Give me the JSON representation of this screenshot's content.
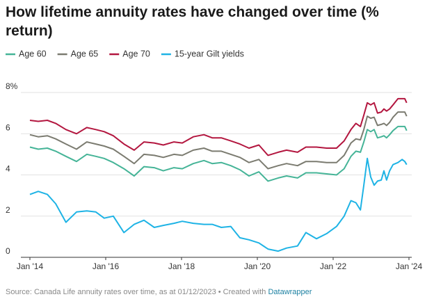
{
  "chart_data": {
    "type": "line",
    "title": "How lifetime annuity rates have changed over time (% return)",
    "source": "Source: Canada Life annuity rates over time, as at 01/12/2023 • Created with ",
    "credit": "Datawrapper",
    "x": [
      2014.0,
      2014.22,
      2014.46,
      2014.68,
      2014.95,
      2015.23,
      2015.5,
      2015.74,
      2015.96,
      2016.2,
      2016.48,
      2016.75,
      2017.01,
      2017.28,
      2017.52,
      2017.8,
      2018.02,
      2018.31,
      2018.59,
      2018.81,
      2019.05,
      2019.3,
      2019.54,
      2019.78,
      2020.04,
      2020.28,
      2020.55,
      2020.77,
      2021.06,
      2021.28,
      2021.56,
      2021.83,
      2022.09,
      2022.29,
      2022.47,
      2022.6,
      2022.72,
      2022.81,
      2022.9,
      2022.99,
      2023.08,
      2023.17,
      2023.27,
      2023.34,
      2023.41,
      2023.49,
      2023.58,
      2023.71,
      2023.82,
      2023.89,
      2023.94
    ],
    "series": [
      {
        "name": "Age 60",
        "color": "#45b497",
        "values": [
          5.35,
          5.25,
          5.3,
          5.15,
          4.9,
          4.65,
          5.0,
          4.9,
          4.8,
          4.6,
          4.3,
          3.95,
          4.4,
          4.35,
          4.2,
          4.35,
          4.3,
          4.55,
          4.7,
          4.55,
          4.6,
          4.45,
          4.25,
          3.95,
          4.15,
          3.7,
          3.85,
          3.95,
          3.85,
          4.1,
          4.1,
          4.05,
          4.0,
          4.3,
          4.9,
          5.15,
          5.1,
          5.6,
          6.2,
          6.1,
          6.2,
          5.8,
          5.85,
          5.9,
          5.8,
          5.95,
          6.15,
          6.35,
          6.35,
          6.35,
          6.15
        ]
      },
      {
        "name": "Age 65",
        "color": "#7b7b70",
        "values": [
          5.95,
          5.85,
          5.9,
          5.75,
          5.5,
          5.25,
          5.6,
          5.5,
          5.4,
          5.25,
          4.9,
          4.55,
          5.0,
          4.95,
          4.85,
          5.0,
          4.95,
          5.2,
          5.3,
          5.15,
          5.15,
          5.0,
          4.85,
          4.6,
          4.75,
          4.3,
          4.45,
          4.55,
          4.45,
          4.65,
          4.65,
          4.6,
          4.6,
          4.95,
          5.55,
          5.75,
          5.7,
          6.2,
          6.85,
          6.75,
          6.8,
          6.4,
          6.45,
          6.5,
          6.4,
          6.55,
          6.8,
          7.05,
          7.05,
          7.05,
          6.85
        ]
      },
      {
        "name": "Age 70",
        "color": "#b3163f",
        "values": [
          6.65,
          6.6,
          6.65,
          6.5,
          6.2,
          6.0,
          6.3,
          6.2,
          6.1,
          5.9,
          5.5,
          5.2,
          5.6,
          5.55,
          5.45,
          5.6,
          5.55,
          5.85,
          5.95,
          5.8,
          5.8,
          5.65,
          5.5,
          5.3,
          5.45,
          4.95,
          5.1,
          5.2,
          5.1,
          5.35,
          5.35,
          5.3,
          5.3,
          5.65,
          6.2,
          6.5,
          6.35,
          6.9,
          7.5,
          7.4,
          7.5,
          7.0,
          7.05,
          7.2,
          7.1,
          7.2,
          7.4,
          7.7,
          7.7,
          7.7,
          7.5
        ]
      },
      {
        "name": "15-year Gilt yields",
        "color": "#1eb3e5",
        "values": [
          3.05,
          3.2,
          3.05,
          2.6,
          1.7,
          2.2,
          2.25,
          2.2,
          1.9,
          2.0,
          1.2,
          1.6,
          1.8,
          1.45,
          1.55,
          1.65,
          1.75,
          1.65,
          1.6,
          1.6,
          1.45,
          1.5,
          0.95,
          0.85,
          0.7,
          0.4,
          0.3,
          0.45,
          0.55,
          1.2,
          0.9,
          1.15,
          1.5,
          2.0,
          2.75,
          2.65,
          2.3,
          3.5,
          4.8,
          3.9,
          3.5,
          3.7,
          3.75,
          4.2,
          3.75,
          4.2,
          4.5,
          4.6,
          4.75,
          4.65,
          4.5
        ]
      }
    ],
    "xlim": [
      2014,
      2024
    ],
    "xticks": [
      {
        "value": 2014,
        "label": "Jan '14"
      },
      {
        "value": 2016,
        "label": "Jan '16"
      },
      {
        "value": 2018,
        "label": "Jan '18"
      },
      {
        "value": 2020,
        "label": "Jan '20"
      },
      {
        "value": 2022,
        "label": "Jan '22"
      },
      {
        "value": 2024,
        "label": "Jan '24"
      }
    ],
    "ylim": [
      0,
      8
    ],
    "yticks": [
      0,
      2,
      4,
      6,
      {
        "value": 8,
        "label": "8%"
      }
    ],
    "grid": true,
    "legend": "top"
  }
}
